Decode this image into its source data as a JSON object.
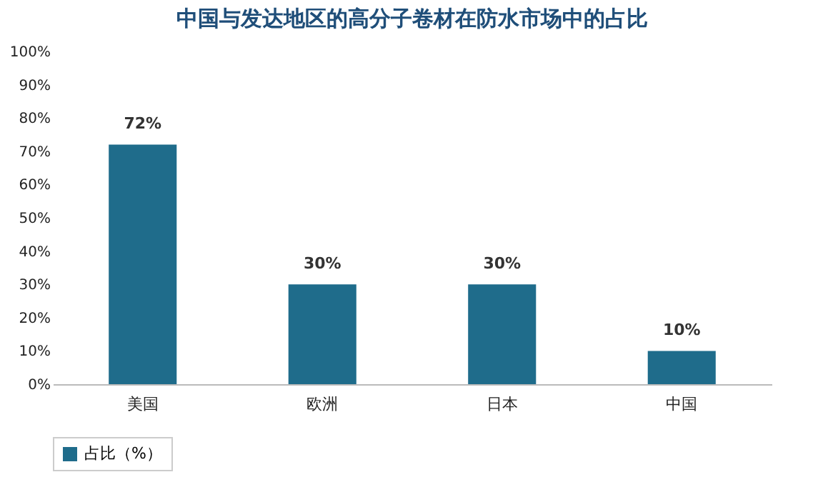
{
  "chart_data": {
    "type": "bar",
    "title": "中国与发达地区的高分子卷材在防水市场中的占比",
    "categories": [
      "美国",
      "欧洲",
      "日本",
      "中国"
    ],
    "series": [
      {
        "name": "占比（%）",
        "color": "#1f6c8b",
        "values": [
          72,
          30,
          30,
          10
        ],
        "value_labels": [
          "72%",
          "30%",
          "30%",
          "10%"
        ]
      }
    ],
    "ylim": [
      0,
      100
    ],
    "yticks": [
      {
        "value": 0,
        "label": "0%"
      },
      {
        "value": 10,
        "label": "10%"
      },
      {
        "value": 20,
        "label": "20%"
      },
      {
        "value": 30,
        "label": "30%"
      },
      {
        "value": 40,
        "label": "40%"
      },
      {
        "value": 50,
        "label": "50%"
      },
      {
        "value": 60,
        "label": "60%"
      },
      {
        "value": 70,
        "label": "70%"
      },
      {
        "value": 80,
        "label": "80%"
      },
      {
        "value": 90,
        "label": "90%"
      },
      {
        "value": 100,
        "label": "100%"
      }
    ],
    "legend": "bottom"
  }
}
